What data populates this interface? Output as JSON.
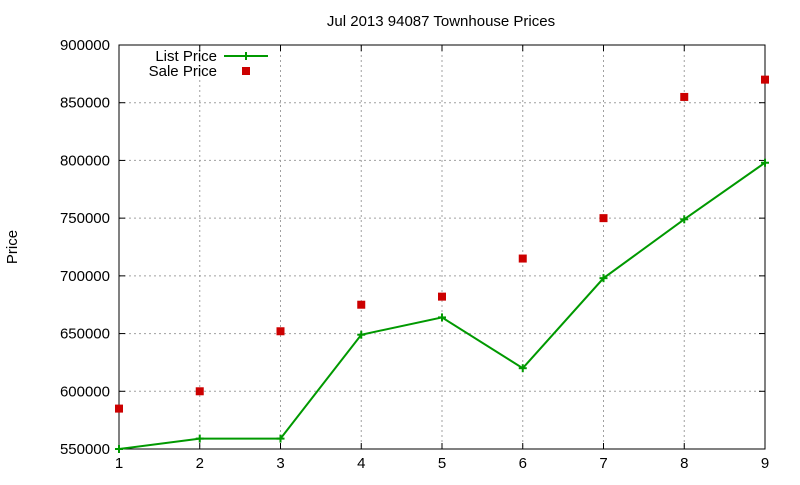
{
  "chart_data": {
    "type": "line",
    "title": "Jul 2013 94087 Townhouse Prices",
    "xlabel": "",
    "ylabel": "Price",
    "xlim": [
      1,
      9
    ],
    "ylim": [
      550000,
      900000
    ],
    "x_ticks": [
      1,
      2,
      3,
      4,
      5,
      6,
      7,
      8,
      9
    ],
    "y_ticks": [
      550000,
      600000,
      650000,
      700000,
      750000,
      800000,
      850000,
      900000
    ],
    "grid": true,
    "legend_position": "top-left",
    "series": [
      {
        "name": "List Price",
        "style": "linespoints",
        "marker": "plus",
        "color": "#009900",
        "x": [
          1,
          2,
          3,
          4,
          5,
          6,
          7,
          8,
          9
        ],
        "y": [
          550000,
          559000,
          559000,
          649000,
          664000,
          620000,
          698000,
          749000,
          798000
        ]
      },
      {
        "name": "Sale Price",
        "style": "points",
        "marker": "square",
        "color": "#cc0000",
        "x": [
          1,
          2,
          3,
          4,
          5,
          6,
          7,
          8,
          9
        ],
        "y": [
          585000,
          600000,
          652000,
          675000,
          682000,
          715000,
          750000,
          855000,
          870000
        ]
      }
    ]
  }
}
